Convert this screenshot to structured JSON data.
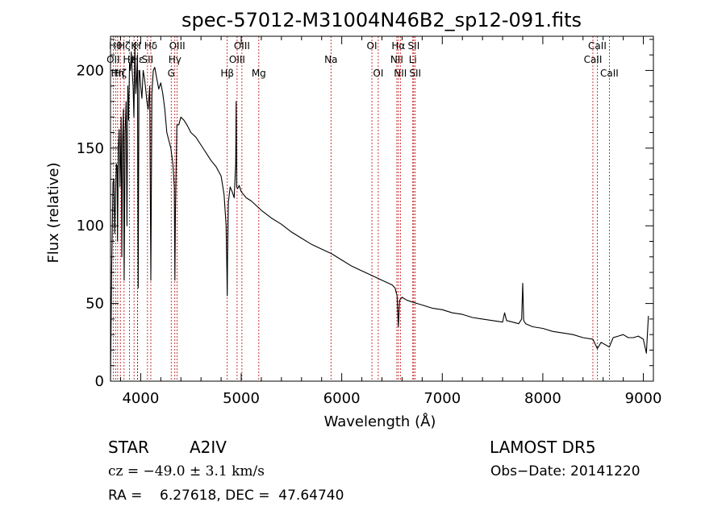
{
  "chart_data": {
    "type": "line",
    "title": "spec-57012-M31004N46B2_sp12-091.fits",
    "xlabel": "Wavelength (Å)",
    "ylabel": "Flux (relative)",
    "xlim": [
      3700,
      9100
    ],
    "ylim": [
      0,
      222
    ],
    "x_ticks": [
      4000,
      5000,
      6000,
      7000,
      8000,
      9000
    ],
    "y_ticks": [
      0,
      50,
      100,
      150,
      200
    ],
    "grid": false,
    "colors": {
      "spectrum": "#000000",
      "line_markers": "#c00000",
      "axes": "#000000"
    },
    "series": [
      {
        "values_note_free": true,
        "x": [
          3700,
          3712,
          3725,
          3734,
          3742,
          3750,
          3758,
          3766,
          3770,
          3778,
          3786,
          3795,
          3800,
          3806,
          3812,
          3820,
          3828,
          3836,
          3845,
          3855,
          3864,
          3872,
          3880,
          3889,
          3898,
          3906,
          3915,
          3925,
          3933,
          3942,
          3952,
          3960,
          3968,
          3975,
          3983,
          3990,
          4000,
          4012,
          4025,
          4038,
          4050,
          4062,
          4075,
          4090,
          4101,
          4112,
          4125,
          4140,
          4160,
          4180,
          4200,
          4220,
          4240,
          4260,
          4280,
          4300,
          4320,
          4335,
          4340,
          4346,
          4360,
          4380,
          4400,
          4430,
          4460,
          4500,
          4550,
          4600,
          4650,
          4700,
          4750,
          4800,
          4830,
          4850,
          4858,
          4861,
          4864,
          4872,
          4890,
          4910,
          4930,
          4945,
          4950,
          4955,
          4965,
          4980,
          5000,
          5050,
          5100,
          5150,
          5200,
          5300,
          5400,
          5500,
          5600,
          5700,
          5800,
          5900,
          6000,
          6100,
          6200,
          6300,
          6400,
          6500,
          6530,
          6550,
          6563,
          6575,
          6600,
          6650,
          6700,
          6750,
          6800,
          6900,
          7000,
          7100,
          7200,
          7300,
          7400,
          7500,
          7600,
          7620,
          7640,
          7700,
          7760,
          7790,
          7800,
          7810,
          7830,
          7900,
          8000,
          8100,
          8200,
          8300,
          8400,
          8498,
          8520,
          8542,
          8580,
          8662,
          8700,
          8750,
          8800,
          8850,
          8900,
          8950,
          9000,
          9030,
          9050
        ],
        "y": [
          0,
          75,
          128,
          130,
          95,
          118,
          140,
          138,
          90,
          150,
          162,
          125,
          145,
          170,
          80,
          155,
          175,
          65,
          160,
          180,
          100,
          190,
          168,
          205,
          200,
          212,
          200,
          190,
          170,
          215,
          185,
          195,
          210,
          60,
          200,
          200,
          190,
          182,
          200,
          195,
          188,
          180,
          175,
          190,
          65,
          185,
          200,
          202,
          195,
          188,
          192,
          185,
          175,
          160,
          155,
          150,
          140,
          125,
          65,
          110,
          165,
          165,
          170,
          168,
          165,
          160,
          157,
          152,
          147,
          142,
          138,
          132,
          120,
          100,
          70,
          55,
          80,
          115,
          125,
          122,
          118,
          140,
          180,
          125,
          124,
          126,
          122,
          118,
          116,
          113,
          110,
          105,
          101,
          96,
          92,
          88,
          85,
          82,
          78,
          74,
          71,
          68,
          65,
          62,
          60,
          55,
          35,
          52,
          54,
          52,
          51,
          50,
          49,
          47,
          46,
          44,
          43,
          41,
          40,
          39,
          38,
          44,
          39,
          38,
          37,
          40,
          63,
          39,
          37,
          35,
          34,
          32,
          31,
          30,
          28,
          27,
          24,
          21,
          25,
          22,
          28,
          29,
          30,
          28,
          28,
          29,
          27,
          18,
          42
        ]
      }
    ],
    "line_labels": [
      {
        "x": 3727,
        "text": "OII",
        "row": 2
      },
      {
        "x": 3750,
        "text": "Hθ",
        "row": 1
      },
      {
        "x": 3771,
        "text": "Hη",
        "row": 3
      },
      {
        "x": 3798,
        "text": "Hζ",
        "row": 3
      },
      {
        "x": 3835,
        "text": "Hζ",
        "row": 1
      },
      {
        "x": 3889,
        "text": "He",
        "row": 2
      },
      {
        "x": 3934,
        "text": "K",
        "row": 1
      },
      {
        "x": 3968,
        "text": "H",
        "row": 1
      },
      {
        "x": 3970,
        "text": "Hε",
        "row": 2
      },
      {
        "x": 4068,
        "text": "SII",
        "row": 2
      },
      {
        "x": 4101,
        "text": "Hδ",
        "row": 1
      },
      {
        "x": 4304,
        "text": "G",
        "row": 3
      },
      {
        "x": 4340,
        "text": "Hγ",
        "row": 2
      },
      {
        "x": 4363,
        "text": "OIII",
        "row": 1
      },
      {
        "x": 4861,
        "text": "Hβ",
        "row": 3
      },
      {
        "x": 4959,
        "text": "OIII",
        "row": 2
      },
      {
        "x": 5007,
        "text": "OIII",
        "row": 1
      },
      {
        "x": 5175,
        "text": "Mg",
        "row": 3
      },
      {
        "x": 5893,
        "text": "Na",
        "row": 2
      },
      {
        "x": 6300,
        "text": "OI",
        "row": 1
      },
      {
        "x": 6363,
        "text": "OI",
        "row": 3
      },
      {
        "x": 6548,
        "text": "NII",
        "row": 2
      },
      {
        "x": 6563,
        "text": "Hα",
        "row": 1
      },
      {
        "x": 6583,
        "text": "NII",
        "row": 3
      },
      {
        "x": 6707,
        "text": "Li",
        "row": 2
      },
      {
        "x": 6716,
        "text": "SII",
        "row": 1
      },
      {
        "x": 6731,
        "text": "SII",
        "row": 3
      },
      {
        "x": 8498,
        "text": "CaII",
        "row": 2
      },
      {
        "x": 8542,
        "text": "CaII",
        "row": 1
      },
      {
        "x": 8662,
        "text": "CaII",
        "row": 3
      }
    ]
  },
  "info": {
    "object_class": "STAR",
    "subclass": "A2IV",
    "survey": "LAMOST DR5",
    "cz": "cz = −49.0 ± 3.1 km/s",
    "obs_date": "Obs−Date: 20141220",
    "ra_dec": "RA =    6.27618, DEC =  47.64740"
  }
}
